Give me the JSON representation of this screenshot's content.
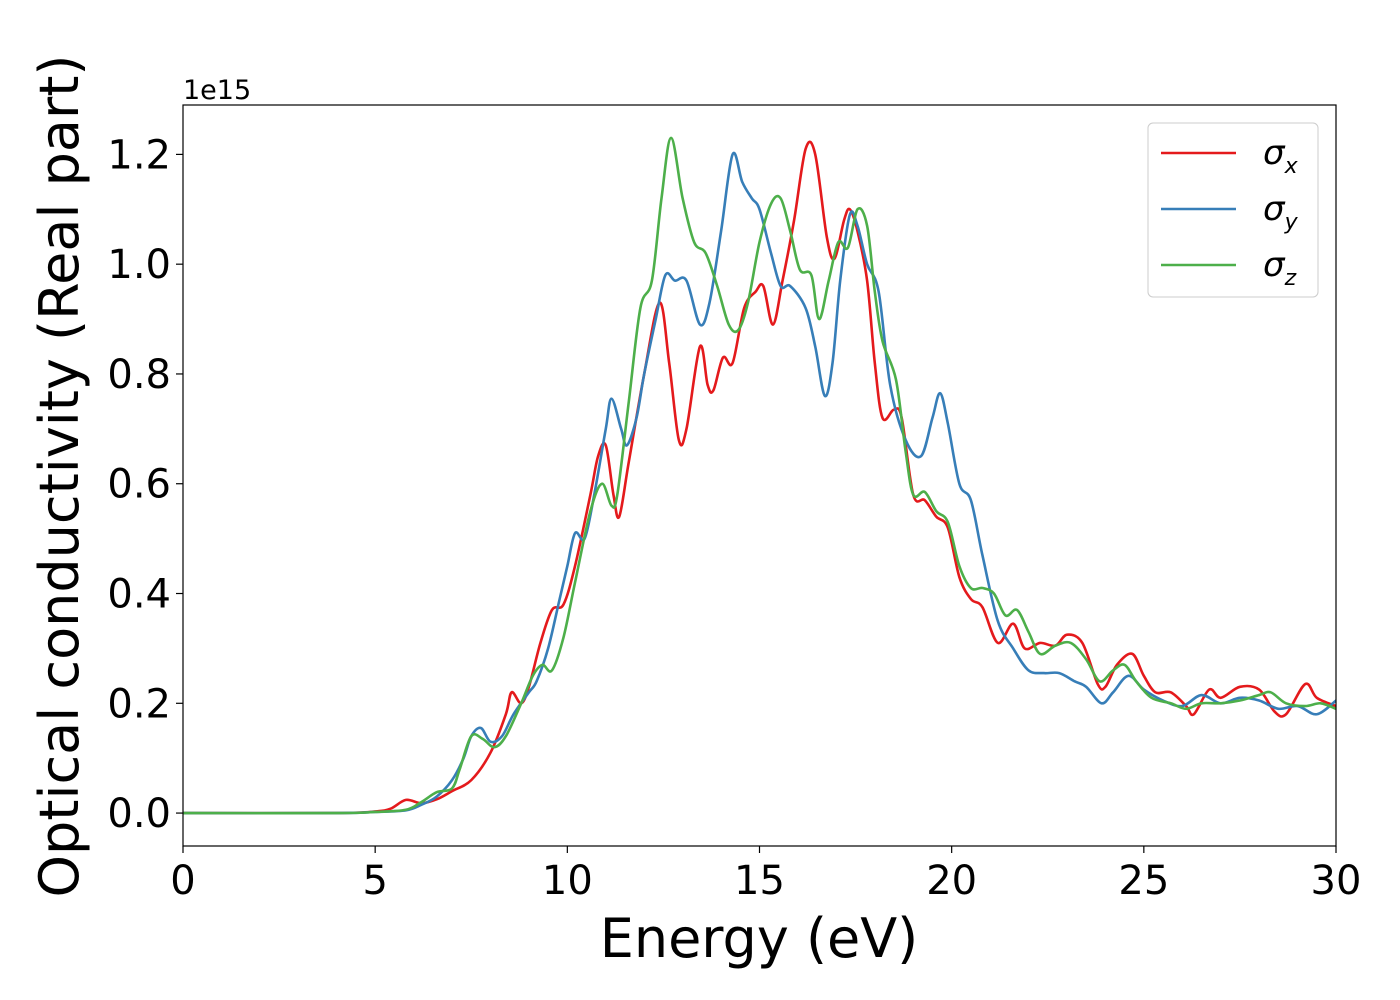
{
  "chart_data": {
    "type": "line",
    "title": "",
    "xlabel": "Energy (eV)",
    "ylabel": "Optical conductivity (Real part)",
    "y_offset_label": "1e15",
    "xlim": [
      0,
      30
    ],
    "ylim": [
      -0.06,
      1.29
    ],
    "xticks": [
      0,
      5,
      10,
      15,
      20,
      25,
      30
    ],
    "xtick_labels": [
      "0",
      "5",
      "10",
      "15",
      "20",
      "25",
      "30"
    ],
    "yticks": [
      0.0,
      0.2,
      0.4,
      0.6,
      0.8,
      1.0,
      1.2
    ],
    "ytick_labels": [
      "0.0",
      "0.2",
      "0.4",
      "0.6",
      "0.8",
      "1.0",
      "1.2"
    ],
    "grid": false,
    "legend_position": "top-right",
    "series": [
      {
        "name": "σx",
        "name_base": "σ",
        "name_sub": "x",
        "color": "#e41a1c",
        "points": [
          [
            0,
            0.0
          ],
          [
            4,
            0.0
          ],
          [
            5,
            0.003
          ],
          [
            5.4,
            0.008
          ],
          [
            5.8,
            0.024
          ],
          [
            6.2,
            0.018
          ],
          [
            6.6,
            0.025
          ],
          [
            7.0,
            0.04
          ],
          [
            7.5,
            0.06
          ],
          [
            8.0,
            0.11
          ],
          [
            8.4,
            0.18
          ],
          [
            8.55,
            0.22
          ],
          [
            8.8,
            0.2
          ],
          [
            9.0,
            0.23
          ],
          [
            9.3,
            0.31
          ],
          [
            9.6,
            0.37
          ],
          [
            9.9,
            0.38
          ],
          [
            10.2,
            0.45
          ],
          [
            10.6,
            0.58
          ],
          [
            10.8,
            0.65
          ],
          [
            11.0,
            0.67
          ],
          [
            11.2,
            0.58
          ],
          [
            11.35,
            0.54
          ],
          [
            11.6,
            0.64
          ],
          [
            12.0,
            0.8
          ],
          [
            12.4,
            0.93
          ],
          [
            12.65,
            0.82
          ],
          [
            12.9,
            0.68
          ],
          [
            13.1,
            0.7
          ],
          [
            13.45,
            0.85
          ],
          [
            13.65,
            0.78
          ],
          [
            13.8,
            0.77
          ],
          [
            14.05,
            0.83
          ],
          [
            14.3,
            0.82
          ],
          [
            14.6,
            0.92
          ],
          [
            14.9,
            0.95
          ],
          [
            15.1,
            0.96
          ],
          [
            15.35,
            0.89
          ],
          [
            15.6,
            0.97
          ],
          [
            15.9,
            1.08
          ],
          [
            16.2,
            1.21
          ],
          [
            16.45,
            1.2
          ],
          [
            16.75,
            1.05
          ],
          [
            16.95,
            1.01
          ],
          [
            17.2,
            1.08
          ],
          [
            17.35,
            1.1
          ],
          [
            17.55,
            1.06
          ],
          [
            17.8,
            0.97
          ],
          [
            18.0,
            0.82
          ],
          [
            18.2,
            0.72
          ],
          [
            18.5,
            0.735
          ],
          [
            18.7,
            0.72
          ],
          [
            19.0,
            0.58
          ],
          [
            19.3,
            0.57
          ],
          [
            19.6,
            0.54
          ],
          [
            19.9,
            0.52
          ],
          [
            20.2,
            0.43
          ],
          [
            20.5,
            0.39
          ],
          [
            20.8,
            0.375
          ],
          [
            21.2,
            0.31
          ],
          [
            21.6,
            0.345
          ],
          [
            21.9,
            0.3
          ],
          [
            22.3,
            0.31
          ],
          [
            22.7,
            0.305
          ],
          [
            23.0,
            0.325
          ],
          [
            23.4,
            0.31
          ],
          [
            23.8,
            0.235
          ],
          [
            24.0,
            0.23
          ],
          [
            24.3,
            0.27
          ],
          [
            24.7,
            0.29
          ],
          [
            25.0,
            0.25
          ],
          [
            25.3,
            0.22
          ],
          [
            25.7,
            0.22
          ],
          [
            26.1,
            0.195
          ],
          [
            26.3,
            0.18
          ],
          [
            26.7,
            0.225
          ],
          [
            27.0,
            0.21
          ],
          [
            27.5,
            0.23
          ],
          [
            28.0,
            0.225
          ],
          [
            28.4,
            0.185
          ],
          [
            28.7,
            0.18
          ],
          [
            29.2,
            0.235
          ],
          [
            29.5,
            0.21
          ],
          [
            30.0,
            0.195
          ]
        ]
      },
      {
        "name": "σy",
        "name_base": "σ",
        "name_sub": "y",
        "color": "#377eb8",
        "points": [
          [
            0,
            0.0
          ],
          [
            4,
            0.0
          ],
          [
            5,
            0.002
          ],
          [
            5.8,
            0.005
          ],
          [
            6.2,
            0.015
          ],
          [
            6.6,
            0.03
          ],
          [
            7.0,
            0.06
          ],
          [
            7.3,
            0.1
          ],
          [
            7.5,
            0.14
          ],
          [
            7.75,
            0.155
          ],
          [
            8.0,
            0.13
          ],
          [
            8.3,
            0.14
          ],
          [
            8.6,
            0.18
          ],
          [
            9.0,
            0.22
          ],
          [
            9.2,
            0.24
          ],
          [
            9.5,
            0.3
          ],
          [
            9.8,
            0.39
          ],
          [
            10.0,
            0.45
          ],
          [
            10.2,
            0.51
          ],
          [
            10.45,
            0.5
          ],
          [
            10.7,
            0.58
          ],
          [
            11.0,
            0.7
          ],
          [
            11.15,
            0.755
          ],
          [
            11.4,
            0.7
          ],
          [
            11.55,
            0.67
          ],
          [
            11.8,
            0.72
          ],
          [
            12.0,
            0.8
          ],
          [
            12.3,
            0.9
          ],
          [
            12.55,
            0.98
          ],
          [
            12.8,
            0.97
          ],
          [
            13.1,
            0.97
          ],
          [
            13.45,
            0.89
          ],
          [
            13.7,
            0.93
          ],
          [
            14.0,
            1.06
          ],
          [
            14.3,
            1.2
          ],
          [
            14.55,
            1.15
          ],
          [
            14.8,
            1.12
          ],
          [
            15.0,
            1.1
          ],
          [
            15.3,
            1.02
          ],
          [
            15.55,
            0.96
          ],
          [
            15.8,
            0.96
          ],
          [
            16.2,
            0.92
          ],
          [
            16.45,
            0.85
          ],
          [
            16.7,
            0.76
          ],
          [
            16.9,
            0.82
          ],
          [
            17.1,
            0.97
          ],
          [
            17.35,
            1.09
          ],
          [
            17.55,
            1.07
          ],
          [
            17.8,
            1.0
          ],
          [
            18.1,
            0.95
          ],
          [
            18.4,
            0.78
          ],
          [
            18.8,
            0.68
          ],
          [
            19.2,
            0.65
          ],
          [
            19.5,
            0.72
          ],
          [
            19.7,
            0.765
          ],
          [
            19.9,
            0.71
          ],
          [
            20.2,
            0.6
          ],
          [
            20.5,
            0.57
          ],
          [
            20.8,
            0.47
          ],
          [
            21.2,
            0.35
          ],
          [
            21.6,
            0.3
          ],
          [
            22.0,
            0.26
          ],
          [
            22.4,
            0.255
          ],
          [
            22.8,
            0.255
          ],
          [
            23.2,
            0.24
          ],
          [
            23.5,
            0.23
          ],
          [
            23.9,
            0.2
          ],
          [
            24.2,
            0.22
          ],
          [
            24.6,
            0.25
          ],
          [
            25.0,
            0.225
          ],
          [
            25.5,
            0.205
          ],
          [
            26.0,
            0.195
          ],
          [
            26.5,
            0.215
          ],
          [
            27.0,
            0.2
          ],
          [
            27.5,
            0.21
          ],
          [
            28.0,
            0.205
          ],
          [
            28.5,
            0.19
          ],
          [
            29.0,
            0.195
          ],
          [
            29.5,
            0.18
          ],
          [
            30.0,
            0.205
          ]
        ]
      },
      {
        "name": "σz",
        "name_base": "σ",
        "name_sub": "z",
        "color": "#4daf4a",
        "points": [
          [
            0,
            0.0
          ],
          [
            4,
            0.0
          ],
          [
            5,
            0.002
          ],
          [
            5.8,
            0.006
          ],
          [
            6.2,
            0.02
          ],
          [
            6.6,
            0.038
          ],
          [
            7.0,
            0.045
          ],
          [
            7.2,
            0.08
          ],
          [
            7.5,
            0.14
          ],
          [
            7.8,
            0.135
          ],
          [
            8.1,
            0.12
          ],
          [
            8.4,
            0.14
          ],
          [
            8.8,
            0.2
          ],
          [
            9.1,
            0.25
          ],
          [
            9.35,
            0.27
          ],
          [
            9.6,
            0.26
          ],
          [
            9.9,
            0.32
          ],
          [
            10.2,
            0.42
          ],
          [
            10.6,
            0.55
          ],
          [
            10.9,
            0.6
          ],
          [
            11.15,
            0.56
          ],
          [
            11.3,
            0.58
          ],
          [
            11.6,
            0.75
          ],
          [
            11.9,
            0.92
          ],
          [
            12.2,
            0.97
          ],
          [
            12.45,
            1.12
          ],
          [
            12.7,
            1.23
          ],
          [
            13.0,
            1.12
          ],
          [
            13.3,
            1.04
          ],
          [
            13.6,
            1.02
          ],
          [
            13.9,
            0.96
          ],
          [
            14.2,
            0.89
          ],
          [
            14.45,
            0.88
          ],
          [
            14.7,
            0.93
          ],
          [
            15.0,
            1.04
          ],
          [
            15.3,
            1.11
          ],
          [
            15.55,
            1.12
          ],
          [
            15.8,
            1.06
          ],
          [
            16.05,
            0.99
          ],
          [
            16.35,
            0.98
          ],
          [
            16.55,
            0.9
          ],
          [
            16.8,
            0.97
          ],
          [
            17.05,
            1.04
          ],
          [
            17.3,
            1.03
          ],
          [
            17.55,
            1.1
          ],
          [
            17.8,
            1.07
          ],
          [
            18.0,
            0.95
          ],
          [
            18.2,
            0.86
          ],
          [
            18.55,
            0.79
          ],
          [
            18.8,
            0.66
          ],
          [
            19.0,
            0.58
          ],
          [
            19.3,
            0.585
          ],
          [
            19.6,
            0.55
          ],
          [
            19.9,
            0.53
          ],
          [
            20.2,
            0.45
          ],
          [
            20.5,
            0.41
          ],
          [
            20.8,
            0.41
          ],
          [
            21.1,
            0.4
          ],
          [
            21.4,
            0.36
          ],
          [
            21.7,
            0.37
          ],
          [
            22.0,
            0.33
          ],
          [
            22.3,
            0.29
          ],
          [
            22.7,
            0.305
          ],
          [
            23.1,
            0.31
          ],
          [
            23.5,
            0.28
          ],
          [
            23.85,
            0.24
          ],
          [
            24.2,
            0.26
          ],
          [
            24.5,
            0.27
          ],
          [
            24.8,
            0.24
          ],
          [
            25.2,
            0.21
          ],
          [
            25.7,
            0.2
          ],
          [
            26.1,
            0.19
          ],
          [
            26.5,
            0.2
          ],
          [
            27.0,
            0.2
          ],
          [
            27.5,
            0.205
          ],
          [
            28.0,
            0.215
          ],
          [
            28.3,
            0.22
          ],
          [
            28.7,
            0.2
          ],
          [
            29.2,
            0.195
          ],
          [
            29.6,
            0.2
          ],
          [
            30.0,
            0.19
          ]
        ]
      }
    ]
  }
}
